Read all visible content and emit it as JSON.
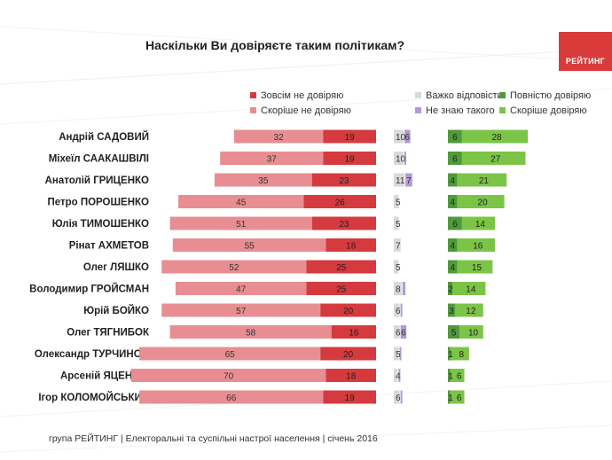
{
  "title": "Наскільки Ви довіряєте таким політикам?",
  "logo_text": "РЕЙТИНГ",
  "footer": "група РЕЙТИНГ  |  Електоральні та суспільні настрої населення  |  січень 2016",
  "colors": {
    "do_not_trust_at_all": "#d43a3e",
    "rather_not_trust": "#e88e93",
    "hard_to_say": "#d9d9d9",
    "dont_know": "#b39ad6",
    "fully_trust": "#4f9a3a",
    "rather_trust": "#7cc447"
  },
  "legend": {
    "not_at_all": "Зовсім не довіряю",
    "rather_not": "Скоріше не довіряю",
    "hard": "Важко відповісти",
    "dont_know": "Не знаю такого",
    "fully": "Повністю довіряю",
    "rather": "Скоріше довіряю"
  },
  "chart_data": {
    "type": "bar",
    "orientation": "horizontal",
    "title": "Наскільки Ви довіряєте таким політикам?",
    "categories": [
      "Андрій САДОВИЙ",
      "Міхеїл СААКАШВІЛІ",
      "Анатолій ГРИЦЕНКО",
      "Петро ПОРОШЕНКО",
      "Юлія ТИМОШЕНКО",
      "Рінат АХМЕТОВ",
      "Олег ЛЯШКО",
      "Володимир ГРОЙСМАН",
      "Юрій БОЙКО",
      "Олег ТЯГНИБОК",
      "Олександр ТУРЧИНОВ",
      "Арсеній ЯЦЕНЮК",
      "Ігор КОЛОМОЙСЬКИЙ"
    ],
    "series": [
      {
        "name": "Скоріше не довіряю",
        "values": [
          32,
          37,
          35,
          45,
          51,
          55,
          52,
          47,
          57,
          58,
          65,
          70,
          66
        ]
      },
      {
        "name": "Зовсім не довіряю",
        "values": [
          19,
          19,
          23,
          26,
          23,
          18,
          25,
          25,
          20,
          16,
          20,
          18,
          19
        ]
      },
      {
        "name": "Важко відповісти",
        "values": [
          10,
          10,
          11,
          5,
          5,
          7,
          5,
          8,
          6,
          6,
          5,
          4,
          6
        ]
      },
      {
        "name": "Не знаю такого",
        "values": [
          6,
          1,
          7,
          0,
          0,
          0,
          0,
          3,
          1,
          6,
          1,
          1,
          1
        ]
      },
      {
        "name": "Повністю довіряю",
        "values": [
          6,
          6,
          4,
          4,
          6,
          4,
          4,
          2,
          3,
          5,
          1,
          1,
          1
        ]
      },
      {
        "name": "Скоріше довіряю",
        "values": [
          28,
          27,
          21,
          20,
          14,
          16,
          15,
          14,
          12,
          10,
          8,
          6,
          6
        ]
      }
    ],
    "labels_shown": {
      "Не знаю такого": [
        6,
        null,
        7,
        null,
        null,
        null,
        null,
        null,
        null,
        6,
        null,
        null,
        null
      ]
    },
    "unit": "%"
  }
}
